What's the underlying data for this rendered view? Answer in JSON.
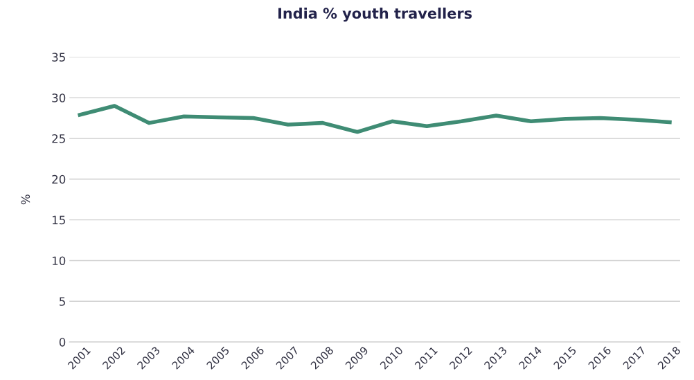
{
  "chart_data": {
    "type": "line",
    "title": "India % youth travellers",
    "ylabel": "%",
    "categories": [
      "2001",
      "2002",
      "2003",
      "2004",
      "2005",
      "2006",
      "2007",
      "2008",
      "2009",
      "2010",
      "2011",
      "2012",
      "2013",
      "2014",
      "2015",
      "2016",
      "2017",
      "2018"
    ],
    "series": [
      {
        "color": "#3f8c74",
        "values": [
          27.9,
          29.0,
          26.9,
          27.7,
          27.6,
          27.5,
          26.7,
          26.9,
          25.8,
          27.1,
          26.5,
          27.1,
          27.8,
          27.1,
          27.4,
          27.5,
          27.3,
          27.0
        ]
      }
    ],
    "ylim": [
      0,
      35
    ],
    "yticks": [
      0,
      5,
      10,
      15,
      20,
      25,
      30,
      35
    ],
    "grid": "y",
    "legend": false,
    "marker": "none",
    "line_style": "solid"
  }
}
